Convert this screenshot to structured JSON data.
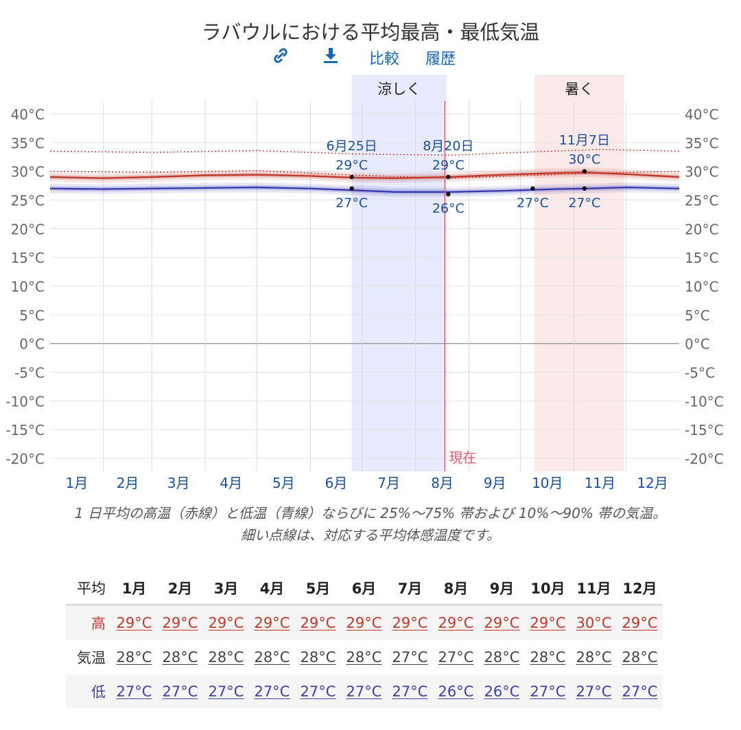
{
  "title": "ラバウルにおける平均最高・最低気温",
  "toolbar": {
    "link_icon": "link-icon",
    "download_icon": "download-icon",
    "compare_label": "比較",
    "history_label": "履歴"
  },
  "colors": {
    "high": "#c0392b",
    "low": "#3b3bb0",
    "cool_band": "#e8eafd",
    "hot_band": "#fce9e9",
    "now_line": "#e05a6a",
    "label_blue": "#1a4f9c"
  },
  "chart_data": {
    "type": "line",
    "title": "ラバウルにおける平均最高・最低気温",
    "unit": "°C",
    "ylim": [
      -22,
      42
    ],
    "y_ticks": [
      40,
      35,
      30,
      25,
      20,
      15,
      10,
      5,
      0,
      -5,
      -10,
      -15,
      -20
    ],
    "y_tick_labels": [
      "40°C",
      "35°C",
      "30°C",
      "25°C",
      "20°C",
      "15°C",
      "10°C",
      "5°C",
      "0°C",
      "-5°C",
      "-10°C",
      "-15°C",
      "-20°C"
    ],
    "month_labels": [
      "1月",
      "2月",
      "3月",
      "4月",
      "5月",
      "6月",
      "7月",
      "8月",
      "9月",
      "10月",
      "11月",
      "12月"
    ],
    "x_range_days": [
      0,
      365
    ],
    "series": [
      {
        "name": "high",
        "x": [
          0,
          31,
          59,
          90,
          120,
          151,
          176,
          200,
          232,
          263,
          294,
          311,
          335,
          365
        ],
        "values": [
          29.0,
          28.8,
          29.0,
          29.3,
          29.4,
          29.2,
          28.9,
          28.8,
          29.0,
          29.4,
          29.7,
          29.8,
          29.5,
          29.0
        ]
      },
      {
        "name": "low",
        "x": [
          0,
          31,
          59,
          90,
          120,
          151,
          176,
          200,
          232,
          263,
          294,
          311,
          335,
          365
        ],
        "values": [
          27.0,
          26.9,
          27.0,
          27.1,
          27.2,
          27.0,
          26.7,
          26.4,
          26.4,
          26.6,
          26.9,
          27.0,
          27.2,
          27.0
        ]
      },
      {
        "name": "high_feels_like",
        "x": [
          0,
          60,
          120,
          180,
          232,
          290,
          320,
          365
        ],
        "values": [
          33.5,
          33.3,
          33.6,
          33.0,
          32.8,
          33.5,
          33.8,
          33.5
        ]
      },
      {
        "name": "low_feels_like",
        "x": [
          0,
          60,
          120,
          180,
          232,
          290,
          320,
          365
        ],
        "values": [
          30.0,
          29.8,
          30.1,
          29.3,
          28.8,
          29.4,
          29.7,
          30.0
        ]
      }
    ],
    "bands": [
      {
        "label": "涼しく",
        "start_day": 175,
        "end_day": 230
      },
      {
        "label": "暑く",
        "start_day": 281,
        "end_day": 333
      }
    ],
    "now": {
      "label": "現在",
      "day": 229
    },
    "annotations": [
      {
        "day": 175,
        "value": 29,
        "date": "6月25日",
        "label": "29°C",
        "series": "high"
      },
      {
        "day": 175,
        "value": 27,
        "label": "27°C",
        "series": "low"
      },
      {
        "day": 231,
        "value": 29,
        "date": "8月20日",
        "label": "29°C",
        "series": "high"
      },
      {
        "day": 231,
        "value": 26,
        "label": "26°C",
        "series": "low"
      },
      {
        "day": 280,
        "value": 27,
        "label": "27°C",
        "series": "low"
      },
      {
        "day": 310,
        "value": 30,
        "date": "11月7日",
        "label": "30°C",
        "series": "high"
      },
      {
        "day": 310,
        "value": 27,
        "label": "27°C",
        "series": "low"
      }
    ]
  },
  "caption": {
    "line1": "1 日平均の高温（赤線）と低温（青線）ならびに 25%～75% 帯および 10%～90% 帯の気温。",
    "line2": "細い点線は、対応する平均体感温度です。"
  },
  "table": {
    "corner": "平均",
    "months": [
      "1月",
      "2月",
      "3月",
      "4月",
      "5月",
      "6月",
      "7月",
      "8月",
      "9月",
      "10月",
      "11月",
      "12月"
    ],
    "rows": [
      {
        "label": "高",
        "values": [
          "29°C",
          "29°C",
          "29°C",
          "29°C",
          "29°C",
          "29°C",
          "29°C",
          "29°C",
          "29°C",
          "29°C",
          "30°C",
          "29°C"
        ]
      },
      {
        "label": "気温",
        "values": [
          "28°C",
          "28°C",
          "28°C",
          "28°C",
          "28°C",
          "28°C",
          "27°C",
          "27°C",
          "28°C",
          "28°C",
          "28°C",
          "28°C"
        ]
      },
      {
        "label": "低",
        "values": [
          "27°C",
          "27°C",
          "27°C",
          "27°C",
          "27°C",
          "27°C",
          "27°C",
          "26°C",
          "26°C",
          "27°C",
          "27°C",
          "27°C"
        ]
      }
    ]
  }
}
